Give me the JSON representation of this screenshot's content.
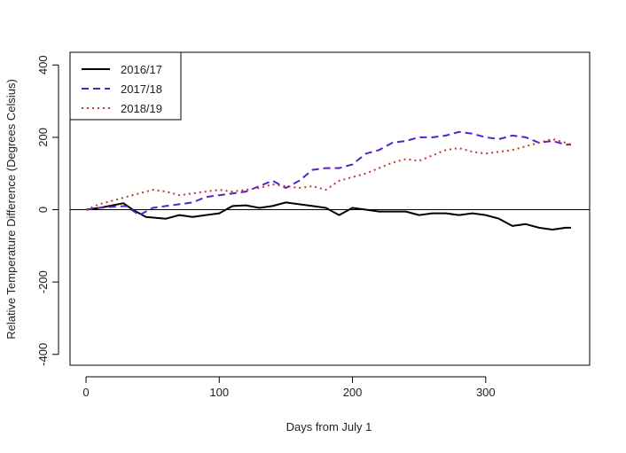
{
  "chart_data": {
    "type": "line",
    "xlabel": "Days from July 1",
    "ylabel": "Relative Temperature Difference (Degrees Celsius)",
    "xlim": [
      -12,
      378
    ],
    "ylim": [
      -430,
      435
    ],
    "xticks": [
      0,
      100,
      200,
      300
    ],
    "yticks": [
      -400,
      -200,
      0,
      200,
      400
    ],
    "xtick_labels": [
      "0",
      "100",
      "200",
      "300"
    ],
    "ytick_labels": [
      "-400",
      "-200",
      "0",
      "200",
      "400"
    ],
    "reference_line_y": 0,
    "grid": false,
    "legend_position": "top-left",
    "series": [
      {
        "name": "2016/17",
        "color": "#000000",
        "style": "solid",
        "x": [
          0,
          10,
          20,
          28,
          35,
          45,
          60,
          70,
          80,
          90,
          100,
          110,
          120,
          130,
          140,
          150,
          160,
          170,
          180,
          190,
          200,
          210,
          220,
          230,
          240,
          250,
          260,
          270,
          280,
          290,
          300,
          310,
          320,
          330,
          340,
          350,
          360,
          364
        ],
        "y": [
          0,
          5,
          12,
          18,
          0,
          -20,
          -25,
          -15,
          -20,
          -15,
          -10,
          10,
          12,
          5,
          10,
          20,
          15,
          10,
          5,
          -15,
          5,
          0,
          -5,
          -5,
          -5,
          -15,
          -10,
          -10,
          -15,
          -10,
          -15,
          -25,
          -45,
          -40,
          -50,
          -55,
          -50,
          -50
        ]
      },
      {
        "name": "2017/18",
        "color": "#5a1fc8",
        "style": "dashed",
        "x": [
          0,
          10,
          20,
          30,
          40,
          50,
          60,
          70,
          80,
          90,
          100,
          110,
          120,
          130,
          140,
          150,
          160,
          170,
          180,
          190,
          200,
          210,
          220,
          230,
          240,
          250,
          260,
          270,
          280,
          290,
          300,
          310,
          320,
          330,
          340,
          350,
          360,
          364
        ],
        "y": [
          0,
          5,
          8,
          10,
          -15,
          5,
          10,
          15,
          20,
          35,
          40,
          45,
          50,
          65,
          80,
          60,
          80,
          110,
          115,
          115,
          125,
          155,
          165,
          185,
          190,
          200,
          200,
          205,
          215,
          210,
          200,
          195,
          205,
          200,
          185,
          190,
          180,
          180
        ]
      },
      {
        "name": "2018/19",
        "color": "#c0392b",
        "style": "dotted",
        "x": [
          0,
          10,
          20,
          30,
          40,
          50,
          60,
          70,
          80,
          90,
          100,
          110,
          120,
          130,
          140,
          150,
          160,
          170,
          180,
          190,
          200,
          210,
          220,
          230,
          240,
          250,
          260,
          270,
          280,
          290,
          300,
          310,
          320,
          330,
          340,
          350,
          360,
          364
        ],
        "y": [
          0,
          15,
          25,
          35,
          45,
          55,
          50,
          40,
          45,
          50,
          55,
          50,
          55,
          60,
          70,
          65,
          60,
          65,
          55,
          80,
          90,
          100,
          115,
          130,
          140,
          135,
          150,
          165,
          170,
          160,
          155,
          160,
          165,
          175,
          185,
          195,
          185,
          180
        ]
      }
    ]
  }
}
